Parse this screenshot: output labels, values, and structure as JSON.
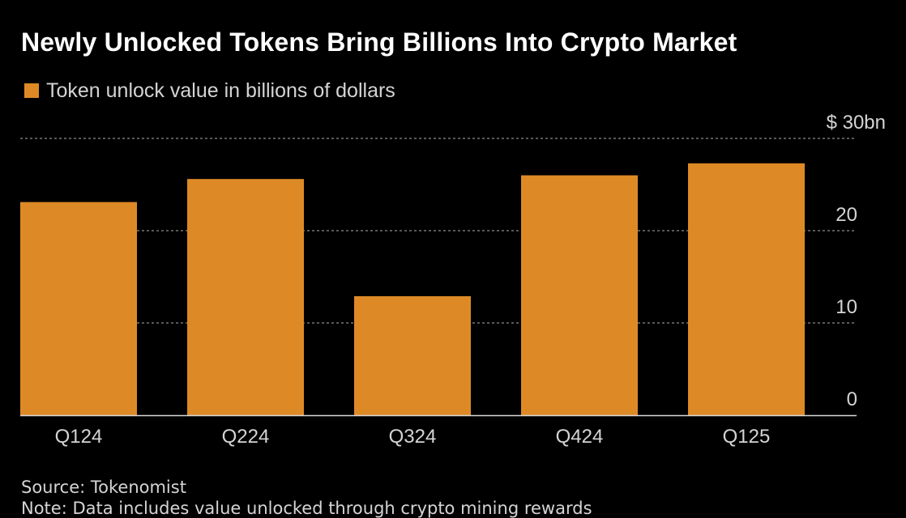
{
  "title": "Newly Unlocked Tokens Bring Billions Into Crypto Market",
  "legend": {
    "label": "Token unlock value in billions of dollars",
    "color": "#dd8a26"
  },
  "colors": {
    "background": "#000000",
    "bar": "#dd8a26",
    "grid": "#8c8c8c",
    "axis": "#d9d9d9",
    "text": "#d4d4d4"
  },
  "chart_data": {
    "type": "bar",
    "title": "Newly Unlocked Tokens Bring Billions Into Crypto Market",
    "xlabel": "",
    "ylabel": "",
    "categories": [
      "Q124",
      "Q224",
      "Q324",
      "Q424",
      "Q125"
    ],
    "series": [
      {
        "name": "Token unlock value in billions of dollars",
        "values": [
          23.1,
          25.6,
          12.9,
          26.0,
          27.3
        ]
      }
    ],
    "ylim": [
      0,
      30
    ],
    "yticks": [
      0,
      10,
      20,
      30
    ],
    "ytick_labels": [
      "0",
      "10",
      "20",
      "$ 30bn"
    ],
    "y_axis_position": "right",
    "grid": true,
    "legend_position": "top-left"
  },
  "footer": {
    "source": "Source: Tokenomist",
    "note": "Note: Data includes value unlocked through crypto mining rewards"
  }
}
